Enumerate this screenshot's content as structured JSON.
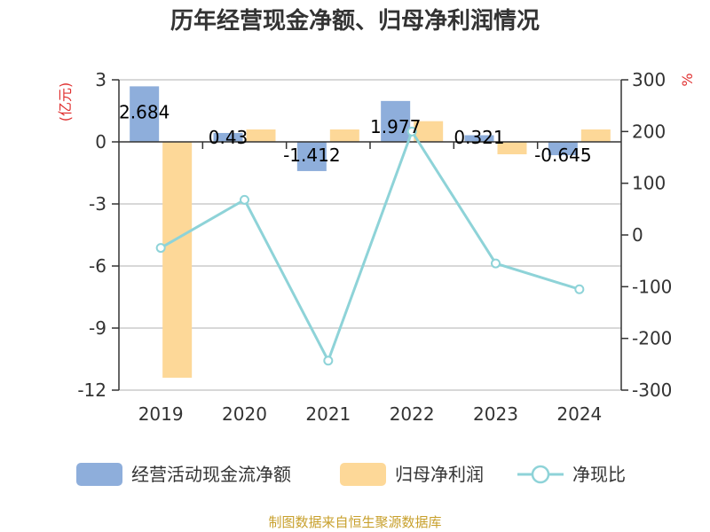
{
  "chart_data": {
    "type": "bar",
    "title": "历年经营现金净额、归母净利润情况",
    "categories": [
      "2019",
      "2020",
      "2021",
      "2022",
      "2023",
      "2024"
    ],
    "y_left": {
      "unit": "(亿元)",
      "ticks": [
        "3",
        "0",
        "-3",
        "-6",
        "-9",
        "-12"
      ],
      "range": [
        -12,
        3
      ]
    },
    "y_right": {
      "unit": "%",
      "ticks": [
        "300",
        "200",
        "100",
        "0",
        "-100",
        "-200",
        "-300"
      ],
      "range": [
        -300,
        300
      ]
    },
    "series": [
      {
        "name": "经营活动现金流净额",
        "type": "bar",
        "axis": "left",
        "color": "#8eaedb",
        "values": [
          2.684,
          0.43,
          -1.412,
          1.977,
          0.321,
          -0.645
        ],
        "labels": [
          "2.684",
          "0.43",
          "-1.412",
          "1.977",
          "0.321",
          "-0.645"
        ]
      },
      {
        "name": "归母净利润",
        "type": "bar",
        "axis": "left",
        "color": "#fdd898",
        "values": [
          -11.4,
          0.6,
          0.6,
          1.0,
          -0.6,
          0.6
        ]
      },
      {
        "name": "净现比",
        "type": "line",
        "axis": "right",
        "color": "#8ed3d8",
        "values": [
          -25,
          68,
          -243,
          200,
          -55,
          -105
        ]
      }
    ],
    "legend_position": "bottom",
    "grid": true
  },
  "source_text": "制图数据来自恒生聚源数据库"
}
